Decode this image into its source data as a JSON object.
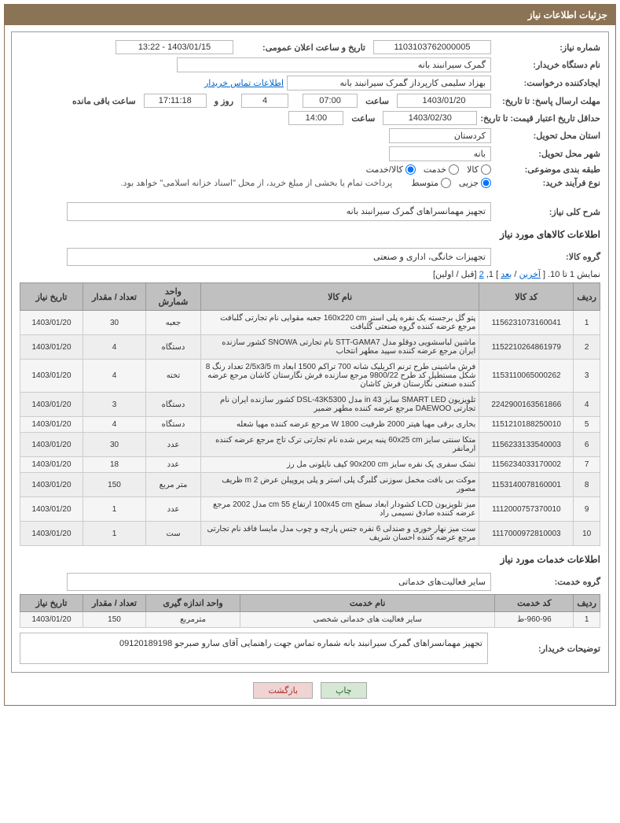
{
  "header_title": "جزئیات اطلاعات نیاز",
  "labels": {
    "need_number": "شماره نیاز:",
    "announce_datetime": "تاریخ و ساعت اعلان عمومی:",
    "buyer_org": "نام دستگاه خریدار:",
    "requester": "ایجادکننده درخواست:",
    "contact_link": "اطلاعات تماس خریدار",
    "deadline": "مهلت ارسال پاسخ: تا تاریخ:",
    "time": "ساعت",
    "days_and": "روز و",
    "remaining": "ساعت باقی مانده",
    "credit_deadline": "حداقل تاریخ اعتبار قیمت: تا تاریخ:",
    "delivery_province": "استان محل تحویل:",
    "delivery_city": "شهر محل تحویل:",
    "topic_class": "طبقه بندی موضوعی:",
    "purchase_type": "نوع فرآیند خرید:",
    "goods_radio_1": "کالا",
    "goods_radio_2": "خدمت",
    "goods_radio_3": "کالا/خدمت",
    "purchase_radio_1": "جزیی",
    "purchase_radio_2": "متوسط",
    "purchase_hint": "پرداخت تمام یا بخشی از مبلغ خرید، از محل \"اسناد خزانه اسلامی\" خواهد بود.",
    "general_desc": "شرح کلی نیاز:",
    "goods_section": "اطلاعات کالاهای مورد نیاز",
    "goods_group": "گروه کالا:",
    "services_section": "اطلاعات خدمات مورد نیاز",
    "services_group": "گروه خدمت:",
    "buyer_remarks": "توضیحات خریدار:"
  },
  "values": {
    "need_number": "1103103762000005",
    "announce_datetime": "1403/01/15 - 13:22",
    "buyer_org": "گمرک سیرانبند بانه",
    "requester": "بهزاد سلیمی کارپرداز گمرک سیرانبند بانه",
    "deadline_date": "1403/01/20",
    "deadline_time": "07:00",
    "days_left": "4",
    "time_left": "17:11:18",
    "credit_date": "1403/02/30",
    "credit_time": "14:00",
    "province": "کردستان",
    "city": "بانه",
    "general_desc": "تجهیز مهمانسراهای گمرک سیرانبند بانه",
    "goods_group": "تجهیزات خانگی، اداری و صنعتی",
    "services_group": "سایر فعالیت‌های خدماتی",
    "remarks": "تجهیز مهمانسراهای گمرک سیرانبند بانه شماره تماس جهت راهنمایی آقای سارو صبرجو 09120189198"
  },
  "pagination": {
    "text1": "نمایش 1 تا 10. [",
    "last": "آخرین",
    "sep": " / ",
    "next": "بعد",
    "text2": "] 1, ",
    "page2": "2",
    "text3": " [قبل / اولین]"
  },
  "goods_table": {
    "headers": [
      "ردیف",
      "کد کالا",
      "نام کالا",
      "واحد شمارش",
      "تعداد / مقدار",
      "تاریخ نیاز"
    ],
    "rows": [
      [
        "1",
        "1156231073160041",
        "پتو گل برجسته یک نفره پلی استر 160x220 cm جعبه مقوایی نام تجارتی گلبافت مرجع عرضه کننده گروه صنعتی گلبافت",
        "جعبه",
        "30",
        "1403/01/20"
      ],
      [
        "2",
        "1152210264861979",
        "ماشین لباسشویی دوقلو مدل STT-GAMA7 نام تجارتی SNOWA کشور سازنده ایران مرجع عرضه کننده سپید مطهر انتخاب",
        "دستگاه",
        "4",
        "1403/01/20"
      ],
      [
        "3",
        "1153110065000262",
        "فرش ماشینی طرح ترنم اکریلیک شانه 700 تراکم 1500 ابعاد 2/5x3/5 m تعداد رنگ 8 شکل مستطیل کد طرح 9800/22 مرجع سازنده فرش نگارستان کاشان مرجع عرضه کننده صنعتی نگارستان فرش کاشان",
        "تخته",
        "4",
        "1403/01/20"
      ],
      [
        "4",
        "2242900163561866",
        "تلویزیون SMART LED سایز 43 in مدل DSL-43K5300 کشور سازنده ایران نام تجارتی DAEWOO مرجع عرضه کننده مطهر ضمیر",
        "دستگاه",
        "3",
        "1403/01/20"
      ],
      [
        "5",
        "1151210188250010",
        "بخاری برقی مهیا هیتر 2000 ظرفیت 1800 W مرجع عرضه کننده مهیا شعله",
        "دستگاه",
        "4",
        "1403/01/20"
      ],
      [
        "6",
        "1156233133540003",
        "متکا سنتی سایز 60x25 cm پنبه پرس شده نام تجارتی ترک تاج مرجع عرضه کننده ارمانفر",
        "عدد",
        "30",
        "1403/01/20"
      ],
      [
        "7",
        "1156234033170002",
        "تشک سفری یک نفره سایز 90x200 cm کیف نایلونی مل رز",
        "عدد",
        "18",
        "1403/01/20"
      ],
      [
        "8",
        "1153140078160001",
        "موکت بی بافت مخمل سوزنی گلبرگ پلی استر و پلی پروپیلن عرض 2 m ظریف مصور",
        "متر مربع",
        "150",
        "1403/01/20"
      ],
      [
        "9",
        "1112000757370010",
        "میز تلویزیون LCD کشودار ابعاد سطح 100x45 cm ارتفاع 55 cm مدل 2002 مرجع عرضه کننده صادق نسیمی راد",
        "عدد",
        "1",
        "1403/01/20"
      ],
      [
        "10",
        "1117000972810003",
        "ست میز نهار خوری و صندلی 6 نفره جنس پارچه و چوب مدل مایسا فاقد نام تجارتی مرجع عرضه کننده احسان شریف",
        "ست",
        "1",
        "1403/01/20"
      ]
    ]
  },
  "services_table": {
    "headers": [
      "ردیف",
      "کد خدمت",
      "نام خدمت",
      "واحد اندازه گیری",
      "تعداد / مقدار",
      "تاریخ نیاز"
    ],
    "rows": [
      [
        "1",
        "960-96-ط",
        "سایر فعالیت های خدماتی شخصی",
        "مترمربع",
        "150",
        "1403/01/20"
      ]
    ]
  },
  "buttons": {
    "print": "چاپ",
    "back": "بازگشت"
  }
}
